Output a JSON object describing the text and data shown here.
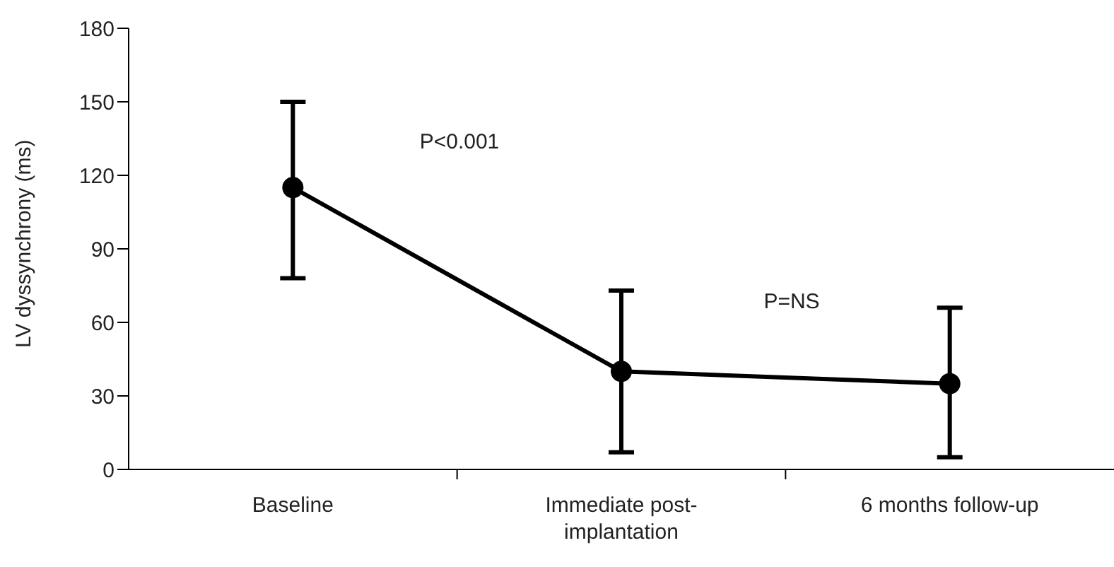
{
  "chart_data": {
    "type": "line",
    "ylabel": "LV dyssynchrony (ms)",
    "categories": [
      "Baseline",
      "Immediate post-implantation",
      "6 months follow-up"
    ],
    "series": [
      {
        "color": "#000000",
        "values": [
          115,
          40,
          35
        ],
        "errors": [
          [
            78,
            150
          ],
          [
            7,
            73
          ],
          [
            5,
            66
          ]
        ]
      }
    ],
    "ylim": [
      0,
      180
    ],
    "yticks": [
      0,
      30,
      60,
      90,
      120,
      150,
      180
    ],
    "grid": false,
    "legend": false,
    "marker": "circle",
    "line_style": "solid",
    "annotations": [
      "P<0.001",
      "P=NS"
    ]
  }
}
